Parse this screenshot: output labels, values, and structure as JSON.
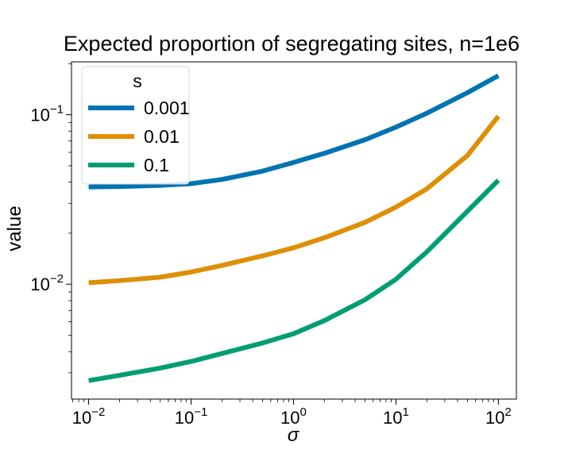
{
  "chart_data": {
    "type": "line",
    "title": "Expected proportion of segregating sites, n=1e6",
    "xlabel": "σ",
    "ylabel": "value",
    "xscale": "log",
    "yscale": "log",
    "xlim": [
      0.0068,
      150
    ],
    "ylim": [
      0.0021,
      0.205
    ],
    "x_ticks": [
      {
        "value": 0.01,
        "base": "10",
        "exp": "−2"
      },
      {
        "value": 0.1,
        "base": "10",
        "exp": "−1"
      },
      {
        "value": 1,
        "base": "10",
        "exp": "0"
      },
      {
        "value": 10,
        "base": "10",
        "exp": "1"
      },
      {
        "value": 100,
        "base": "10",
        "exp": "2"
      }
    ],
    "y_ticks": [
      {
        "value": 0.01,
        "base": "10",
        "exp": "−2"
      },
      {
        "value": 0.1,
        "base": "10",
        "exp": "−1"
      }
    ],
    "legend": {
      "title": "s",
      "placement": "upper-left"
    },
    "x": [
      0.01,
      0.02,
      0.05,
      0.1,
      0.2,
      0.5,
      1,
      2,
      5,
      10,
      20,
      50,
      100
    ],
    "series": [
      {
        "name": "0.001",
        "color": "#0173b2",
        "values": [
          0.0375,
          0.0377,
          0.0383,
          0.0392,
          0.0415,
          0.0465,
          0.0523,
          0.0592,
          0.0712,
          0.0845,
          0.102,
          0.135,
          0.17
        ]
      },
      {
        "name": "0.01",
        "color": "#de8f05",
        "values": [
          0.0102,
          0.0105,
          0.011,
          0.0118,
          0.0129,
          0.0147,
          0.0164,
          0.0188,
          0.0232,
          0.0285,
          0.0365,
          0.0575,
          0.098
        ]
      },
      {
        "name": "0.1",
        "color": "#029e73",
        "values": [
          0.0027,
          0.0029,
          0.0032,
          0.0035,
          0.0039,
          0.0045,
          0.0051,
          0.0061,
          0.0081,
          0.0107,
          0.0155,
          0.027,
          0.041
        ]
      }
    ]
  }
}
